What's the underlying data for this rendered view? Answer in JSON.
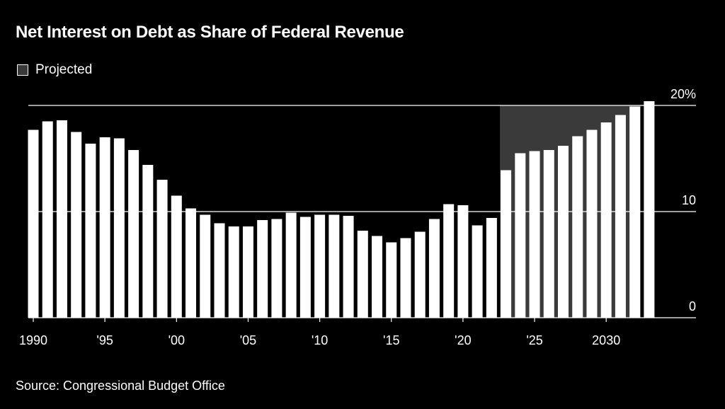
{
  "chart_data": {
    "type": "bar",
    "title": "Net Interest on Debt as Share of Federal Revenue",
    "legend": [
      {
        "label": "Projected",
        "color": "#3a3a3a"
      }
    ],
    "legend_placement": "top-left",
    "source": "Source: Congressional Budget Office",
    "x": [
      1990,
      1991,
      1992,
      1993,
      1994,
      1995,
      1996,
      1997,
      1998,
      1999,
      2000,
      2001,
      2002,
      2003,
      2004,
      2005,
      2006,
      2007,
      2008,
      2009,
      2010,
      2011,
      2012,
      2013,
      2014,
      2015,
      2016,
      2017,
      2018,
      2019,
      2020,
      2021,
      2022,
      2023,
      2024,
      2025,
      2026,
      2027,
      2028,
      2029,
      2030,
      2031,
      2032,
      2033
    ],
    "values": [
      17.7,
      18.5,
      18.6,
      17.5,
      16.4,
      17.0,
      16.9,
      15.8,
      14.4,
      13.0,
      11.5,
      10.3,
      9.7,
      8.9,
      8.6,
      8.6,
      9.2,
      9.3,
      9.9,
      9.5,
      9.7,
      9.7,
      9.6,
      8.2,
      7.7,
      7.1,
      7.5,
      8.1,
      9.3,
      10.7,
      10.6,
      8.7,
      9.4,
      13.9,
      15.5,
      15.7,
      15.8,
      16.2,
      17.1,
      17.7,
      18.4,
      19.1,
      19.9,
      20.4
    ],
    "projected_range": [
      2023,
      2032
    ],
    "xtick_values": [
      1990,
      1995,
      2000,
      2005,
      2010,
      2015,
      2020,
      2025,
      2030
    ],
    "xtick_labels": [
      "1990",
      "'95",
      "'00",
      "'05",
      "'10",
      "'15",
      "'20",
      "'25",
      "2030"
    ],
    "ytick_values": [
      0,
      10,
      20
    ],
    "ytick_labels": [
      "0",
      "10",
      "20%"
    ],
    "ylim": [
      0,
      20
    ],
    "grid": true,
    "colors": {
      "bar": "#ffffff",
      "projected_shade": "#3a3a3a",
      "background": "#000000"
    }
  }
}
